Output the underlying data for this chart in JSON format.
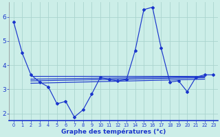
{
  "title": "Graphe des températures (°c)",
  "background_color": "#cceee8",
  "line_color": "#1a35cc",
  "grid_color": "#aad4ce",
  "xlim": [
    -0.5,
    23.5
  ],
  "ylim": [
    1.7,
    6.6
  ],
  "yticks": [
    2,
    3,
    4,
    5,
    6
  ],
  "xtick_labels": [
    "0",
    "1",
    "2",
    "3",
    "4",
    "5",
    "6",
    "7",
    "8",
    "9",
    "10",
    "11",
    "12",
    "13",
    "14",
    "15",
    "16",
    "17",
    "18",
    "19",
    "20",
    "21",
    "22",
    "23"
  ],
  "main_series": [
    5.8,
    4.5,
    3.6,
    3.3,
    3.1,
    2.4,
    2.5,
    1.85,
    2.15,
    2.8,
    3.5,
    3.4,
    3.35,
    3.4,
    4.6,
    6.3,
    6.4,
    4.7,
    3.3,
    3.35,
    2.9,
    3.5,
    3.6,
    3.6
  ],
  "extra_lines": [
    {
      "x": [
        2,
        22
      ],
      "y": [
        3.55,
        3.55
      ]
    },
    {
      "x": [
        2,
        22
      ],
      "y": [
        3.42,
        3.52
      ]
    },
    {
      "x": [
        2,
        22
      ],
      "y": [
        3.35,
        3.48
      ]
    },
    {
      "x": [
        2,
        22
      ],
      "y": [
        3.25,
        3.42
      ]
    }
  ],
  "figsize": [
    3.2,
    2.0
  ],
  "dpi": 100
}
